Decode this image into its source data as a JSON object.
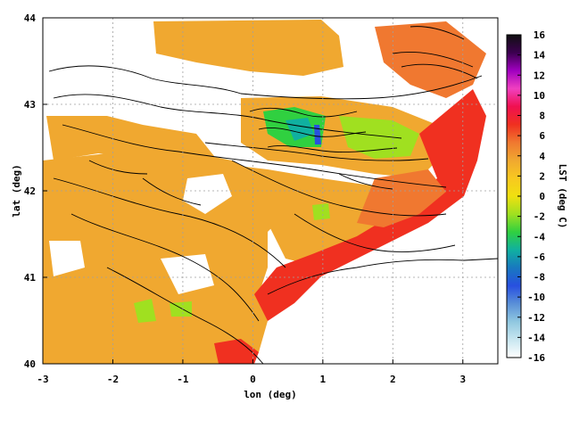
{
  "axes": {
    "x_label": "lon (deg)",
    "y_label": "lat (deg)",
    "x_ticks": [
      "-3",
      "-2",
      "-1",
      "0",
      "1",
      "2",
      "3"
    ],
    "y_ticks": [
      "40",
      "41",
      "42",
      "43",
      "44"
    ],
    "x_range": [
      -3,
      3.5
    ],
    "y_range": [
      40,
      44
    ],
    "grid": "dotted"
  },
  "colorbar": {
    "label": "LST (deg C)",
    "ticks": [
      "16",
      "14",
      "12",
      "10",
      "8",
      "6",
      "4",
      "2",
      "0",
      "-2",
      "-4",
      "-6",
      "-8",
      "-10",
      "-12",
      "-14",
      "-16"
    ],
    "range": [
      -16,
      16
    ],
    "colors": [
      "#ffffff",
      "#c8e6f0",
      "#90c8e0",
      "#5a90d8",
      "#2850e0",
      "#1878c0",
      "#10b0a0",
      "#30d040",
      "#a0e020",
      "#f0e010",
      "#f8c820",
      "#f0a830",
      "#f07830",
      "#f03020",
      "#f01050",
      "#f040c0",
      "#a000c0",
      "#3c0050",
      "#101010"
    ]
  },
  "map_colors": {
    "warm": "#f0a830",
    "orange": "#f07830",
    "red": "#f03020",
    "yellow": "#f0e010",
    "green": "#30d040",
    "lime": "#a0e020",
    "teal": "#10b0a0",
    "blue": "#2850e0",
    "contour": "#000000"
  }
}
